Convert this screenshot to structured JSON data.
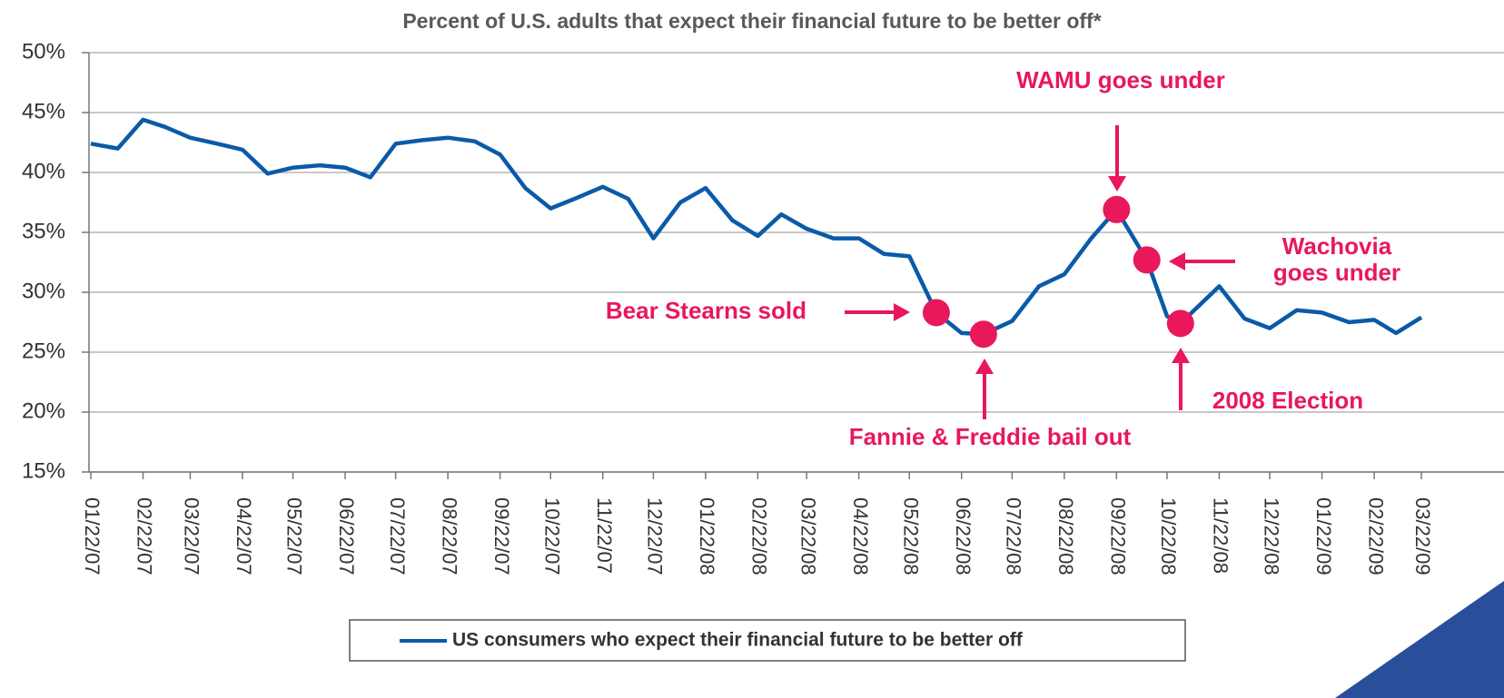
{
  "chart_data": {
    "type": "line",
    "title": "Percent of U.S. adults that expect their financial future to be better off*",
    "x": [
      "01/22/07",
      "02/07/07",
      "02/22/07",
      "03/07/07",
      "03/22/07",
      "04/07/07",
      "04/22/07",
      "05/07/07",
      "05/22/07",
      "06/07/07",
      "06/22/07",
      "07/07/07",
      "07/22/07",
      "08/07/07",
      "08/22/07",
      "09/07/07",
      "09/22/07",
      "10/07/07",
      "10/22/07",
      "11/07/07",
      "11/22/07",
      "12/07/07",
      "12/22/07",
      "01/07/08",
      "01/22/08",
      "02/07/08",
      "02/22/08",
      "03/07/08",
      "03/22/08",
      "04/07/08",
      "04/22/08",
      "05/07/08",
      "05/22/08",
      "06/07/08",
      "06/22/08",
      "07/05/08",
      "07/22/08",
      "08/07/08",
      "08/22/08",
      "09/07/08",
      "09/22/08",
      "10/10/08",
      "10/22/08",
      "10/30/08",
      "11/22/08",
      "12/07/08",
      "12/22/08",
      "01/07/09",
      "01/22/09",
      "02/07/09",
      "02/22/09",
      "03/07/09",
      "03/22/09"
    ],
    "series": [
      {
        "name": "US consumers  who expect  their  financial  future  to  be better  off",
        "color": "#0a5aa8",
        "values": [
          42.4,
          42.0,
          44.4,
          43.8,
          42.9,
          42.4,
          41.9,
          39.9,
          40.4,
          40.6,
          40.4,
          39.6,
          42.4,
          42.7,
          42.9,
          42.6,
          41.5,
          38.7,
          37.0,
          37.9,
          38.8,
          37.8,
          34.5,
          37.5,
          38.7,
          36.0,
          34.7,
          36.5,
          35.3,
          34.5,
          34.5,
          33.2,
          33.0,
          28.3,
          26.6,
          26.5,
          27.6,
          30.5,
          31.5,
          34.5,
          36.9,
          32.7,
          28.0,
          27.4,
          30.5,
          27.8,
          27.0,
          28.5,
          28.3,
          27.5,
          27.7,
          26.6,
          27.9
        ]
      }
    ],
    "xlim": [
      "01/22/07",
      "03/22/09"
    ],
    "xticks": [
      "01/22/07",
      "02/22/07",
      "03/22/07",
      "04/22/07",
      "05/22/07",
      "06/22/07",
      "07/22/07",
      "08/22/07",
      "09/22/07",
      "10/22/07",
      "11/22/07",
      "12/22/07",
      "01/22/08",
      "02/22/08",
      "03/22/08",
      "04/22/08",
      "05/22/08",
      "06/22/08",
      "07/22/08",
      "08/22/08",
      "09/22/08",
      "10/22/08",
      "11/22/08",
      "12/22/08",
      "01/22/09",
      "02/22/09",
      "03/22/09"
    ],
    "ylim": [
      15,
      50
    ],
    "yticks": [
      {
        "value": 15,
        "label": "15%"
      },
      {
        "value": 20,
        "label": "20%"
      },
      {
        "value": 25,
        "label": "25%"
      },
      {
        "value": 30,
        "label": "30%"
      },
      {
        "value": 35,
        "label": "35%"
      },
      {
        "value": 40,
        "label": "40%"
      },
      {
        "value": 45,
        "label": "45%"
      },
      {
        "value": 50,
        "label": "50%"
      }
    ],
    "grid": true,
    "legend": "bottom",
    "annotations": [
      {
        "text": "Bear Stearns sold",
        "x": "06/07/08"
      },
      {
        "text": "Fannie & Freddie bail out",
        "x": "07/05/08"
      },
      {
        "text": "WAMU goes under",
        "x": "09/22/08"
      },
      {
        "text": "Wachovia goes under",
        "x": "10/10/08"
      },
      {
        "text": "2008 Election",
        "x": "10/30/08"
      }
    ],
    "marker_color": "#e8185a"
  }
}
